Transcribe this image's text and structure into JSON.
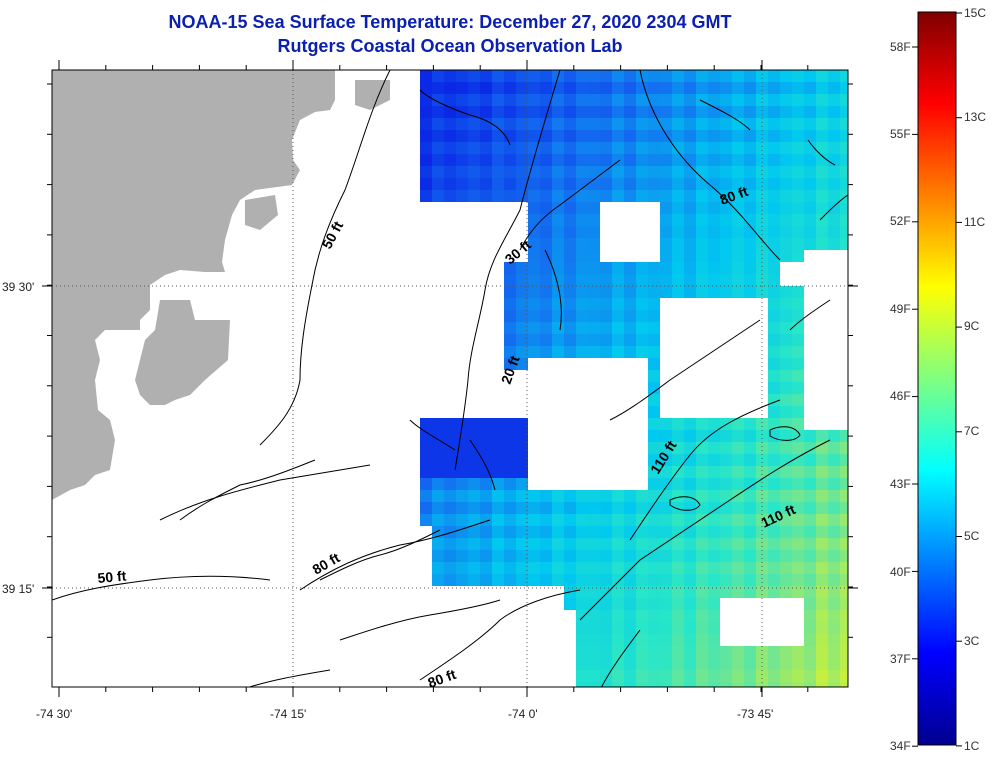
{
  "title": {
    "line1": "NOAA-15 Sea Surface Temperature:  December 27, 2020 2304 GMT",
    "line2": "Rutgers Coastal Ocean Observation Lab"
  },
  "axes": {
    "lon_ticks": [
      "-74 30'",
      "-74 15'",
      "-74 0'",
      "-73 45'"
    ],
    "lat_ticks": [
      "39 30'",
      "39 15'"
    ]
  },
  "contour_labels": [
    "50 ft",
    "30 ft",
    "80 ft",
    "20 ft",
    "110 ft",
    "110 ft",
    "50 ft",
    "80 ft",
    "80 ft"
  ],
  "colorbar": {
    "f_labels": [
      "58F",
      "55F",
      "52F",
      "49F",
      "46F",
      "43F",
      "40F",
      "37F",
      "34F"
    ],
    "c_labels": [
      "15C",
      "13C",
      "11C",
      "9C",
      "7C",
      "5C",
      "3C",
      "1C"
    ]
  },
  "colors": {
    "land": "#b0b0b0",
    "title": "#0b1fb0"
  }
}
